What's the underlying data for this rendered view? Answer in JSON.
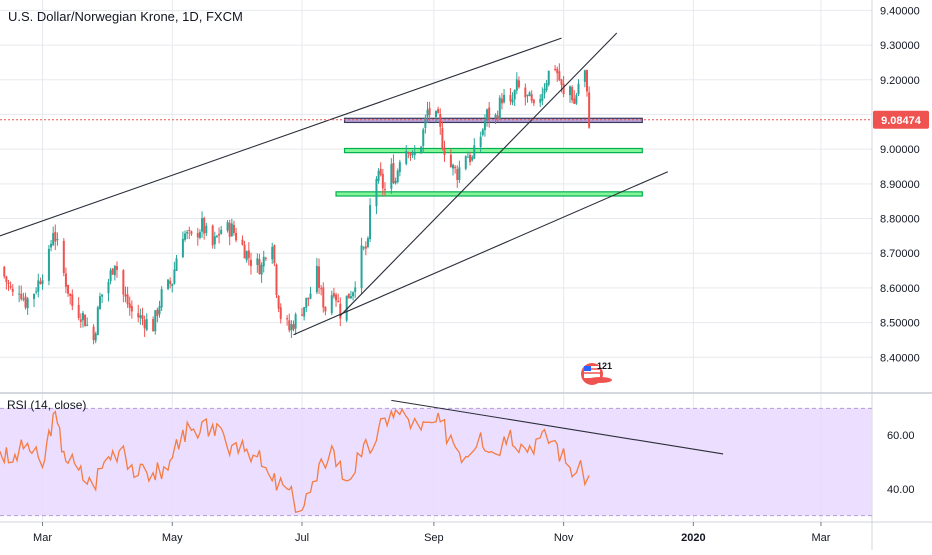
{
  "header": {
    "title": "U.S. Dollar/Norwegian Krone, 1D, FXCM"
  },
  "colors": {
    "up": "#26a69a",
    "down": "#ef5350",
    "grid": "#e6e9ee",
    "axis_text": "#131722",
    "rsi_line": "#f57c42",
    "rsi_band": "#e9d8ff",
    "rsi_band_border": "#b39ddb",
    "zone_green_fill": "#85f59a",
    "zone_green_border": "#00b050",
    "zone_purple_fill": "#b7a3dc",
    "zone_purple_border": "#3a3a5c",
    "trendline": "#2a2e39",
    "price_tag_bg": "#ef5350",
    "current_price_line": "#ef5350"
  },
  "badge": {
    "text": "121",
    "icon": "flag-badge-icon"
  },
  "price_axis": {
    "ticks": [
      "9.40000",
      "9.30000",
      "9.20000",
      "9.10000",
      "9.00000",
      "8.90000",
      "8.80000",
      "8.70000",
      "8.60000",
      "8.50000",
      "8.40000"
    ],
    "current_price_label": "9.08474"
  },
  "time_axis": {
    "labels": [
      "Mar",
      "May",
      "Jul",
      "Sep",
      "Nov",
      "2020",
      "Mar"
    ]
  },
  "rsi_panel": {
    "label": "RSI (14, close)",
    "ticks": [
      "60.00",
      "40.00"
    ]
  },
  "chart_data": [
    {
      "type": "candlestick",
      "title": "U.S. Dollar/Norwegian Krone, 1D, FXCM",
      "xlabel": "",
      "ylabel": "",
      "x_range": [
        "2019-02-09",
        "2020-03-25"
      ],
      "ylim": [
        8.3,
        9.43
      ],
      "grid": true,
      "current_price": 9.08474,
      "close_path": [
        [
          "2019-02-09",
          8.66
        ],
        [
          "2019-02-12",
          8.62
        ],
        [
          "2019-02-15",
          8.58
        ],
        [
          "2019-02-18",
          8.6
        ],
        [
          "2019-02-21",
          8.56
        ],
        [
          "2019-02-25",
          8.59
        ],
        [
          "2019-02-28",
          8.63
        ],
        [
          "2019-03-04",
          8.69
        ],
        [
          "2019-03-06",
          8.77
        ],
        [
          "2019-03-08",
          8.72
        ],
        [
          "2019-03-11",
          8.64
        ],
        [
          "2019-03-15",
          8.55
        ],
        [
          "2019-03-20",
          8.52
        ],
        [
          "2019-03-25",
          8.45
        ],
        [
          "2019-03-28",
          8.57
        ],
        [
          "2019-04-01",
          8.62
        ],
        [
          "2019-04-04",
          8.68
        ],
        [
          "2019-04-08",
          8.58
        ],
        [
          "2019-04-12",
          8.53
        ],
        [
          "2019-04-17",
          8.51
        ],
        [
          "2019-04-22",
          8.49
        ],
        [
          "2019-04-26",
          8.58
        ],
        [
          "2019-05-01",
          8.62
        ],
        [
          "2019-05-03",
          8.69
        ],
        [
          "2019-05-06",
          8.76
        ],
        [
          "2019-05-10",
          8.74
        ],
        [
          "2019-05-15",
          8.78
        ],
        [
          "2019-05-20",
          8.72
        ],
        [
          "2019-05-24",
          8.77
        ],
        [
          "2019-05-29",
          8.77
        ],
        [
          "2019-06-03",
          8.72
        ],
        [
          "2019-06-07",
          8.68
        ],
        [
          "2019-06-12",
          8.66
        ],
        [
          "2019-06-14",
          8.71
        ],
        [
          "2019-06-17",
          8.74
        ],
        [
          "2019-06-19",
          8.6
        ],
        [
          "2019-06-21",
          8.52
        ],
        [
          "2019-06-25",
          8.48
        ],
        [
          "2019-07-01",
          8.54
        ],
        [
          "2019-07-04",
          8.57
        ],
        [
          "2019-07-08",
          8.64
        ],
        [
          "2019-07-10",
          8.58
        ],
        [
          "2019-07-12",
          8.54
        ],
        [
          "2019-07-16",
          8.6
        ],
        [
          "2019-07-19",
          8.53
        ],
        [
          "2019-07-22",
          8.57
        ],
        [
          "2019-07-25",
          8.6
        ],
        [
          "2019-07-29",
          8.7
        ],
        [
          "2019-08-01",
          8.72
        ],
        [
          "2019-08-02",
          8.83
        ],
        [
          "2019-08-05",
          8.92
        ],
        [
          "2019-08-07",
          8.91
        ],
        [
          "2019-08-09",
          8.88
        ],
        [
          "2019-08-12",
          8.94
        ],
        [
          "2019-08-14",
          8.91
        ],
        [
          "2019-08-16",
          8.98
        ],
        [
          "2019-08-20",
          9.01
        ],
        [
          "2019-08-22",
          8.97
        ],
        [
          "2019-08-26",
          9.02
        ],
        [
          "2019-08-29",
          9.11
        ],
        [
          "2019-09-03",
          9.08
        ],
        [
          "2019-09-05",
          9.02
        ],
        [
          "2019-09-09",
          8.95
        ],
        [
          "2019-09-12",
          8.93
        ],
        [
          "2019-09-16",
          8.99
        ],
        [
          "2019-09-19",
          8.97
        ],
        [
          "2019-09-23",
          9.04
        ],
        [
          "2019-09-26",
          9.1
        ],
        [
          "2019-09-30",
          9.09
        ],
        [
          "2019-10-03",
          9.15
        ],
        [
          "2019-10-07",
          9.12
        ],
        [
          "2019-10-10",
          9.18
        ],
        [
          "2019-10-14",
          9.15
        ],
        [
          "2019-10-16",
          9.14
        ],
        [
          "2019-10-18",
          9.11
        ],
        [
          "2019-10-22",
          9.17
        ],
        [
          "2019-10-25",
          9.22
        ],
        [
          "2019-10-28",
          9.24
        ],
        [
          "2019-10-30",
          9.2
        ],
        [
          "2019-11-01",
          9.15
        ],
        [
          "2019-11-04",
          9.18
        ],
        [
          "2019-11-06",
          9.13
        ],
        [
          "2019-11-08",
          9.19
        ],
        [
          "2019-11-11",
          9.22
        ],
        [
          "2019-11-13",
          9.08
        ]
      ],
      "zones": [
        {
          "from": 9.077,
          "to": 9.089,
          "color": "purple"
        },
        {
          "from": 8.99,
          "to": 9.002,
          "color": "green"
        },
        {
          "from": 8.865,
          "to": 8.877,
          "color": "green"
        }
      ],
      "trendlines": [
        {
          "from": [
            "2019-02-09",
            8.75
          ],
          "to": [
            "2019-10-31",
            9.32
          ]
        },
        {
          "from": [
            "2019-06-27",
            8.465
          ],
          "to": [
            "2019-12-20",
            8.935
          ]
        },
        {
          "from": [
            "2019-07-19",
            8.52
          ],
          "to": [
            "2019-11-26",
            9.335
          ]
        }
      ]
    },
    {
      "type": "line",
      "title": "RSI (14, close)",
      "xlabel": "",
      "ylabel": "",
      "ylim": [
        28,
        75
      ],
      "bands": [
        30,
        70
      ],
      "x": [
        "2019-02-09",
        "2019-02-15",
        "2019-02-22",
        "2019-03-01",
        "2019-03-06",
        "2019-03-11",
        "2019-03-18",
        "2019-03-25",
        "2019-04-01",
        "2019-04-08",
        "2019-04-15",
        "2019-04-22",
        "2019-04-29",
        "2019-05-06",
        "2019-05-13",
        "2019-05-20",
        "2019-05-27",
        "2019-06-03",
        "2019-06-10",
        "2019-06-17",
        "2019-06-24",
        "2019-07-01",
        "2019-07-08",
        "2019-07-15",
        "2019-07-22",
        "2019-07-29",
        "2019-08-05",
        "2019-08-12",
        "2019-08-19",
        "2019-08-26",
        "2019-09-02",
        "2019-09-09",
        "2019-09-16",
        "2019-09-23",
        "2019-09-30",
        "2019-10-07",
        "2019-10-14",
        "2019-10-21",
        "2019-10-28",
        "2019-11-04",
        "2019-11-13"
      ],
      "values": [
        54,
        50,
        57,
        48,
        68,
        54,
        47,
        41,
        52,
        56,
        45,
        46,
        47,
        62,
        59,
        64,
        55,
        58,
        52,
        43,
        40,
        32,
        43,
        56,
        43,
        52,
        58,
        69,
        67,
        62,
        65,
        60,
        52,
        61,
        53,
        62,
        55,
        59,
        58,
        48,
        45
      ],
      "ticks": [
        60,
        40
      ],
      "trendline": {
        "from": [
          "2019-08-12",
          73
        ],
        "to": [
          "2020-01-15",
          53
        ]
      }
    }
  ]
}
